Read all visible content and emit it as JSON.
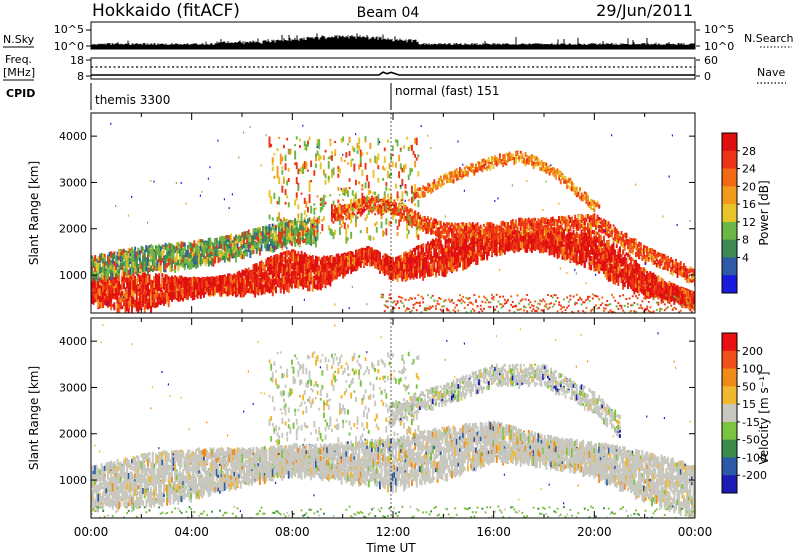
{
  "header": {
    "station": "Hokkaido (fitACF)",
    "beam": "Beam 04",
    "date": "29/Jun/2011"
  },
  "top_panel": {
    "nsky_label": "N.Sky",
    "nsearch_label": "N.Search",
    "noise_ticks": [
      "10^5",
      "10^0"
    ],
    "freq_label_line1": "Freq.",
    "freq_label_line2": "[MHz]",
    "freq_ticks": [
      "18",
      "8"
    ],
    "nave_label": "Nave",
    "nave_ticks": [
      "60",
      "0"
    ],
    "cpid_label": "CPID",
    "cpid_segments": [
      "themis 3300",
      "normal (fast) 151"
    ]
  },
  "power_panel": {
    "ylabel": "Slant Range [km]",
    "yticks": [
      "4000",
      "3000",
      "2000",
      "1000"
    ],
    "colorbar_label": "Power [dB]",
    "colorbar_ticks": [
      "28",
      "24",
      "20",
      "16",
      "12",
      "8",
      "4"
    ],
    "colors": [
      "#1a1adc",
      "#2e5aa8",
      "#3e8a52",
      "#6cb648",
      "#e8c42a",
      "#f29a1c",
      "#f26a14",
      "#ee3416",
      "#e01010"
    ]
  },
  "velocity_panel": {
    "ylabel": "Slant Range [km]",
    "yticks": [
      "4000",
      "3000",
      "2000",
      "1000"
    ],
    "colorbar_label": "Velocity [m s⁻¹]",
    "colorbar_ticks": [
      "200",
      "100",
      "50",
      "15",
      "-15",
      "-50",
      "-100",
      "-200"
    ],
    "colors": [
      "#1c1cb4",
      "#2c5aa8",
      "#3a8c48",
      "#7cc440",
      "#c8c8c0",
      "#f0b830",
      "#f08a18",
      "#f05018",
      "#e81010"
    ]
  },
  "xaxis": {
    "ticks": [
      "00:00",
      "04:00",
      "08:00",
      "12:00",
      "16:00",
      "20:00",
      "00:00"
    ],
    "label": "Time UT"
  },
  "chart_data": {
    "type": "heatmap",
    "title": "Hokkaido (fitACF)",
    "xlabel": "Time UT",
    "ylabel": "Slant Range [km]",
    "x_range_hours": [
      0,
      24
    ],
    "y_range_km": [
      180,
      4500
    ],
    "panels": [
      {
        "name": "Power [dB]",
        "clim": [
          0,
          30
        ],
        "bands": [
          {
            "t_hours": [
              0,
              2,
              4,
              6,
              8,
              9,
              10,
              11,
              12,
              14,
              16,
              18,
              20,
              22,
              24
            ],
            "range_km": [
              700,
              700,
              800,
              900,
              1200,
              1100,
              1300,
              1500,
              1200,
              1500,
              1800,
              1800,
              1600,
              900,
              500
            ],
            "value_db": 26
          },
          {
            "t_hours": [
              10,
              11,
              12,
              13,
              14,
              16,
              17,
              18,
              20,
              22,
              24
            ],
            "range_km": [
              2400,
              2600,
              2500,
              2200,
              2000,
              2000,
              2100,
              2100,
              2200,
              1500,
              1000
            ],
            "value_db": 22
          },
          {
            "t_hours": [
              13,
              14,
              15,
              16,
              17,
              18,
              19,
              20
            ],
            "range_km": [
              2800,
              3100,
              3300,
              3500,
              3600,
              3400,
              3000,
              2500
            ],
            "value_db": 20
          },
          {
            "t_hours": [
              0,
              2,
              4,
              6,
              8
            ],
            "range_km": [
              1200,
              1400,
              1500,
              1700,
              2000
            ],
            "value_db": 12
          }
        ]
      },
      {
        "name": "Velocity [m s-1]",
        "clim": [
          -200,
          200
        ],
        "bands": [
          {
            "t_hours": [
              0,
              4,
              8,
              12,
              16,
              20,
              24
            ],
            "range_km": [
              900,
              1200,
              1500,
              1400,
              1900,
              1500,
              800
            ],
            "value_ms": 0
          },
          {
            "t_hours": [
              12,
              14,
              16,
              18,
              20,
              21
            ],
            "range_km": [
              2500,
              2900,
              3300,
              3300,
              2700,
              2200
            ],
            "value_ms": 0
          }
        ]
      }
    ]
  }
}
